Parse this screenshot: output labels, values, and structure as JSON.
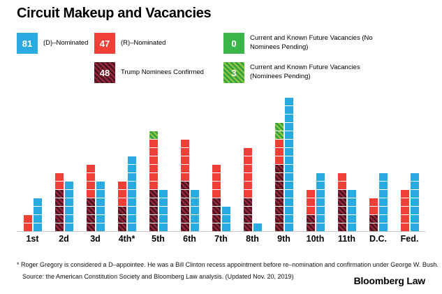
{
  "title": "Circuit Makeup and Vacancies",
  "legend": {
    "d": {
      "count": "81",
      "label": "(D)–Nominated",
      "color": "#29abe2"
    },
    "r": {
      "count": "47",
      "label": "(R)–Nominated",
      "color": "#ee4037"
    },
    "trump": {
      "count": "48",
      "label": "Trump Nominees Confirmed",
      "color": "#97283a"
    },
    "vac_open": {
      "count": "0",
      "label": "Current and Known Future Vacancies (No Nominees Pending)",
      "color": "#3bb54a"
    },
    "vac_pending": {
      "count": "3",
      "label": "Current and Known Future Vacancies (Nominees Pending)",
      "color": "#8dc63f"
    }
  },
  "chart_data": {
    "type": "bar",
    "variant": "stacked-unit-squares; one square = one judgeship; per circuit a left stacked bar (Trump confirmed at bottom, other R-nominated above, vacancies on top) and a right bar (D-nominated)",
    "categories": [
      "1st",
      "2d",
      "3d",
      "4th*",
      "5th",
      "6th",
      "7th",
      "8th",
      "9th",
      "10th",
      "11th",
      "D.C.",
      "Fed."
    ],
    "series": [
      {
        "key": "d",
        "name": "(D)-Nominated",
        "color": "#29abe2",
        "values": [
          4,
          6,
          6,
          9,
          5,
          5,
          3,
          1,
          16,
          7,
          5,
          7,
          7
        ],
        "total": 81
      },
      {
        "key": "r",
        "name": "(R)-Nominated",
        "color": "#ee4037",
        "values": [
          2,
          2,
          4,
          3,
          6,
          5,
          4,
          6,
          3,
          3,
          2,
          2,
          5
        ],
        "total": 47
      },
      {
        "key": "trump",
        "name": "Trump Nominees Confirmed",
        "color": "#97283a",
        "hatched": true,
        "values": [
          0,
          5,
          4,
          3,
          5,
          6,
          4,
          4,
          8,
          2,
          5,
          2,
          0
        ],
        "total": 48
      },
      {
        "key": "vac_open",
        "name": "Current and Known Future Vacancies (No Nominees Pending)",
        "color": "#3bb54a",
        "values": [
          0,
          0,
          0,
          0,
          0,
          0,
          0,
          0,
          0,
          0,
          0,
          0,
          0
        ],
        "total": 0
      },
      {
        "key": "vac_pending",
        "name": "Current and Known Future Vacancies (Nominees Pending)",
        "color": "#8dc63f",
        "hatched": true,
        "values": [
          0,
          0,
          0,
          0,
          1,
          0,
          0,
          0,
          2,
          0,
          0,
          0,
          0
        ],
        "total": 3
      }
    ],
    "ylim": [
      0,
      16
    ],
    "grid": false,
    "legend_position": "top"
  },
  "footnotes": {
    "note1": "* Roger Gregory is considered a D–appointee. He was a Bill Clinton recess appointment before re–nomination and confirmation under George W. Bush.",
    "note2": "Source: the American Constitution Society and Bloomberg Law analysis. (Updated Nov. 20, 2019)"
  },
  "brand": "Bloomberg Law"
}
